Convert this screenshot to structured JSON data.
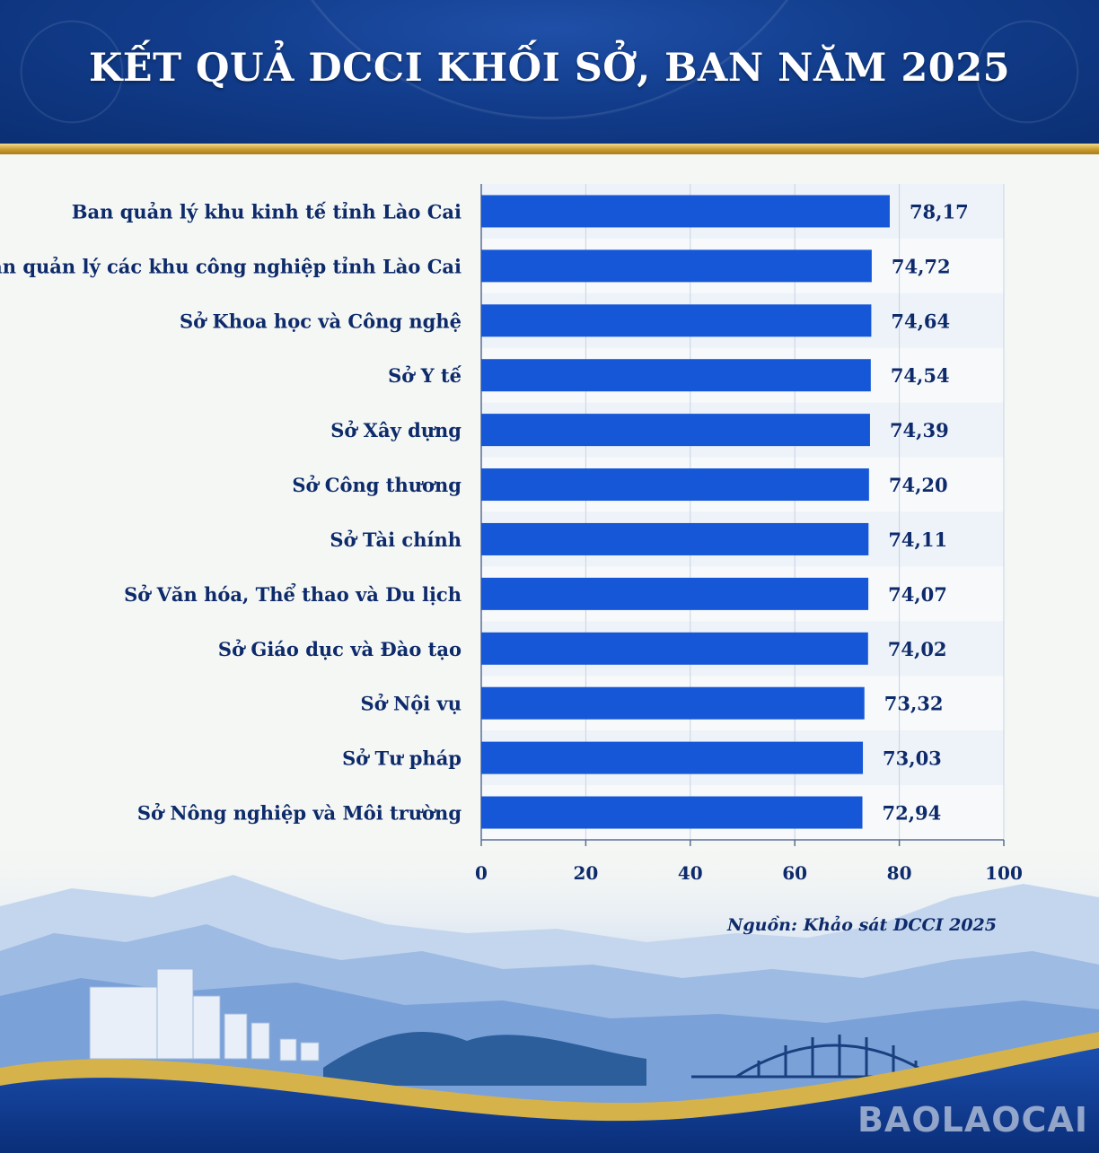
{
  "header": {
    "title": "KẾT QUẢ DCCI KHỐI SỞ, BAN NĂM 2025"
  },
  "colors": {
    "bar": "#1557d6",
    "header_bg": "#123d8c",
    "gold": "#c99a2e",
    "text": "#0d2a6b"
  },
  "chart_data": {
    "type": "bar",
    "orientation": "horizontal",
    "categories": [
      "Ban quản lý khu kinh tế tỉnh Lào Cai",
      "Ban quản lý các khu công nghiệp tỉnh Lào Cai",
      "Sở Khoa học và Công nghệ",
      "Sở Y tế",
      "Sở Xây dựng",
      "Sở Công thương",
      "Sở Tài chính",
      "Sở Văn hóa, Thể thao và Du lịch",
      "Sở Giáo dục và Đào tạo",
      "Sở Nội vụ",
      "Sở Tư pháp",
      "Sở Nông nghiệp và Môi trường"
    ],
    "values": [
      78.17,
      74.72,
      74.64,
      74.54,
      74.39,
      74.2,
      74.11,
      74.07,
      74.02,
      73.32,
      73.03,
      72.94
    ],
    "value_labels": [
      "78,17",
      "74,72",
      "74,64",
      "74,54",
      "74,39",
      "74,20",
      "74,11",
      "74,07",
      "74,02",
      "73,32",
      "73,03",
      "72,94"
    ],
    "xlim": [
      0,
      100
    ],
    "xticks": [
      "0",
      "20",
      "40",
      "60",
      "80",
      "100"
    ],
    "grid": true
  },
  "source": "Nguồn: Khảo sát DCCI 2025",
  "watermark": "BAOLAOCAI"
}
